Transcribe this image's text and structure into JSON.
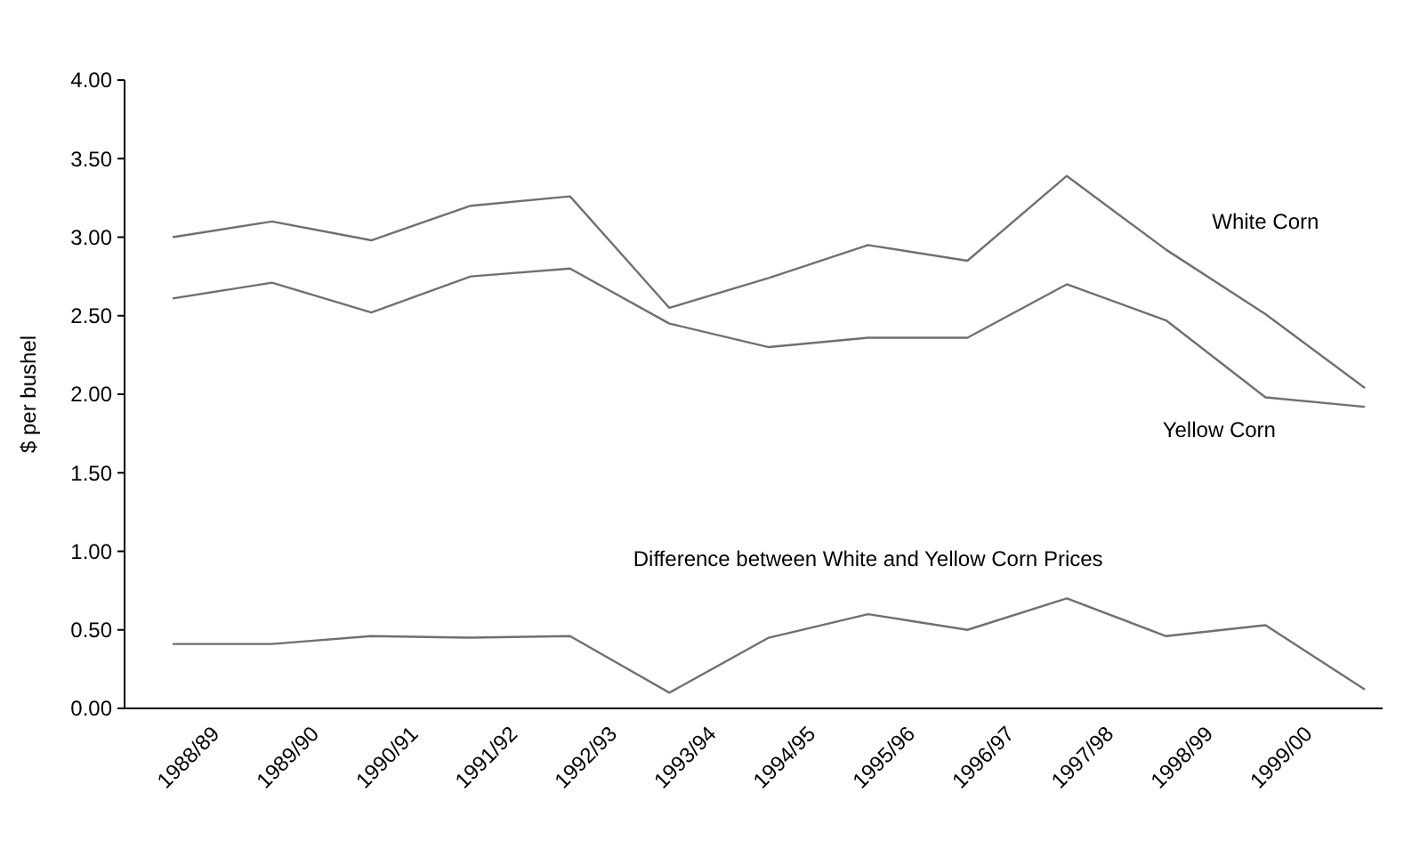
{
  "chart_data": {
    "type": "line",
    "ylabel": "$ per bushel",
    "categories": [
      "1988/89",
      "1989/90",
      "1990/91",
      "1991/92",
      "1992/93",
      "1993/94",
      "1994/95",
      "1995/96",
      "1996/97",
      "1997/98",
      "1998/99",
      "1999/00",
      null
    ],
    "series": [
      {
        "name": "White Corn",
        "color": "#707070",
        "values": [
          3.0,
          3.1,
          2.98,
          3.2,
          3.26,
          2.55,
          2.74,
          2.95,
          2.85,
          3.39,
          2.92,
          2.51,
          2.04
        ]
      },
      {
        "name": "Yellow Corn",
        "color": "#707070",
        "values": [
          2.61,
          2.71,
          2.52,
          2.75,
          2.8,
          2.45,
          2.3,
          2.36,
          2.36,
          2.7,
          2.47,
          1.98,
          1.92
        ]
      },
      {
        "name": "Difference between White and Yellow Corn Prices",
        "color": "#707070",
        "values": [
          0.41,
          0.41,
          0.46,
          0.45,
          0.46,
          0.1,
          0.45,
          0.6,
          0.5,
          0.7,
          0.46,
          0.53,
          0.12
        ]
      }
    ],
    "ylim": [
      0,
      4
    ],
    "yticks": [
      {
        "value": 0,
        "label": "0.00"
      },
      {
        "value": 0.5,
        "label": "0.50"
      },
      {
        "value": 1,
        "label": "1.00"
      },
      {
        "value": 1.5,
        "label": "1.50"
      },
      {
        "value": 2,
        "label": "2.00"
      },
      {
        "value": 2.5,
        "label": "2.50"
      },
      {
        "value": 3,
        "label": "3.00"
      },
      {
        "value": 3.5,
        "label": "3.50"
      },
      {
        "value": 4,
        "label": "4.00"
      }
    ],
    "grid": false,
    "marker": "none",
    "line_style": "solid"
  }
}
